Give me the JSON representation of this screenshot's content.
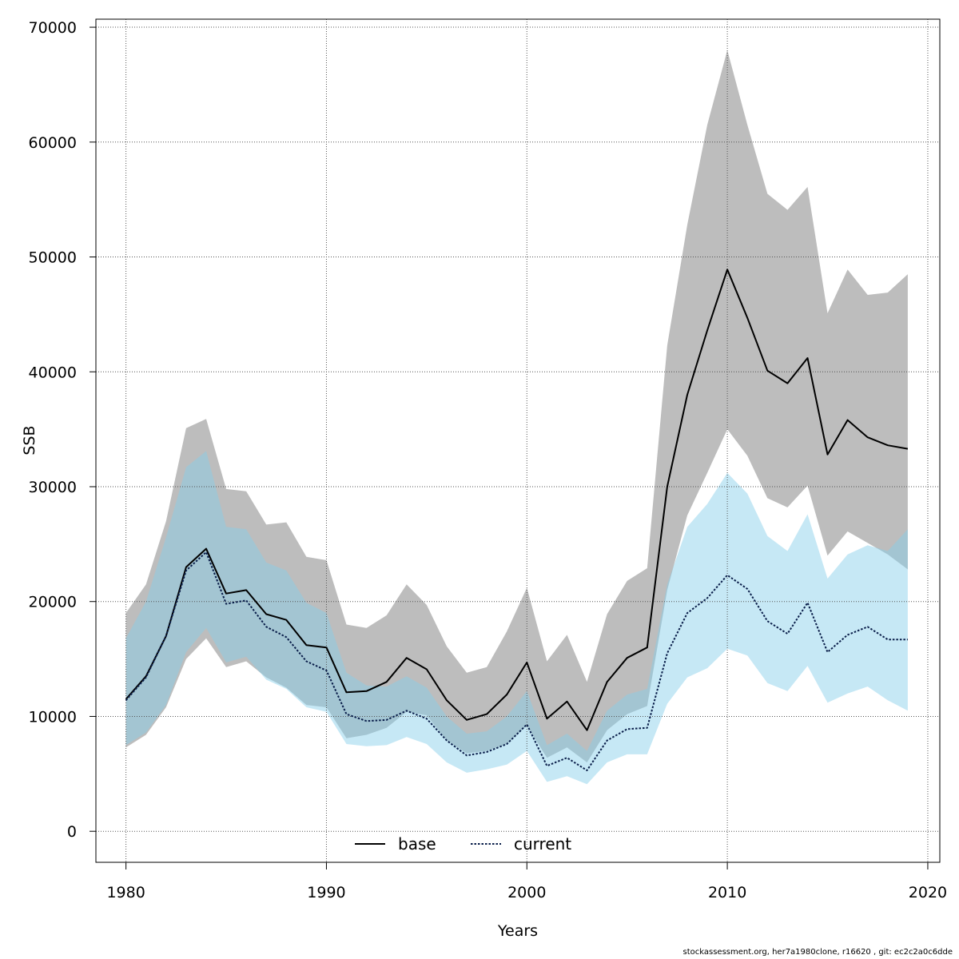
{
  "chart_data": {
    "type": "line",
    "xlabel": "Years",
    "ylabel": "SSB",
    "xlim": [
      1978.5,
      2020.6
    ],
    "ylim": [
      -2700,
      70700
    ],
    "xticks": [
      1980,
      1990,
      2000,
      2010,
      2020
    ],
    "yticks": [
      0,
      10000,
      20000,
      30000,
      40000,
      50000,
      60000,
      70000
    ],
    "grid": true,
    "legend_position": "bottom-center",
    "x": [
      1980,
      1981,
      1982,
      1983,
      1984,
      1985,
      1986,
      1987,
      1988,
      1989,
      1990,
      1991,
      1992,
      1993,
      1994,
      1995,
      1996,
      1997,
      1998,
      1999,
      2000,
      2001,
      2002,
      2003,
      2004,
      2005,
      2006,
      2007,
      2008,
      2009,
      2010,
      2011,
      2012,
      2013,
      2014,
      2015,
      2016,
      2017,
      2018,
      2019
    ],
    "series": [
      {
        "name": "base",
        "line_color": "#000000",
        "band_color": "#808080",
        "values": [
          11500,
          13500,
          17000,
          23000,
          24600,
          20700,
          21000,
          18900,
          18400,
          16200,
          16000,
          12100,
          12200,
          13000,
          15100,
          14100,
          11400,
          9700,
          10200,
          11900,
          14700,
          9800,
          11300,
          8800,
          13000,
          15100,
          16000,
          30000,
          38000,
          43600,
          48900,
          44700,
          40100,
          39000,
          41200,
          32800,
          35800,
          34300,
          33600,
          33300
        ],
        "lower": [
          7300,
          8400,
          10800,
          15000,
          16800,
          14300,
          14800,
          13400,
          12500,
          11000,
          10800,
          8100,
          8400,
          9000,
          10400,
          10100,
          7900,
          6800,
          7000,
          7600,
          9200,
          6400,
          7300,
          6000,
          8800,
          10200,
          10900,
          21000,
          27500,
          31200,
          35000,
          32700,
          29000,
          28200,
          30100,
          24000,
          26100,
          25100,
          24100,
          22800
        ],
        "upper": [
          19000,
          21500,
          27000,
          35100,
          35900,
          29800,
          29600,
          26700,
          26900,
          23900,
          23600,
          18000,
          17700,
          18800,
          21500,
          19700,
          16100,
          13800,
          14300,
          17400,
          21200,
          14800,
          17100,
          13000,
          18900,
          21800,
          22900,
          42300,
          52800,
          61500,
          68000,
          61500,
          55500,
          54100,
          56100,
          45100,
          48900,
          46700,
          46900,
          48500
        ]
      },
      {
        "name": "current",
        "line_color": "#0a1e4a",
        "band_color": "#87ceeb",
        "values": [
          11400,
          13400,
          17000,
          22700,
          24300,
          19800,
          20100,
          17800,
          16900,
          14800,
          14000,
          10200,
          9600,
          9700,
          10500,
          9800,
          7900,
          6600,
          6900,
          7600,
          9300,
          5700,
          6400,
          5300,
          7900,
          8900,
          9000,
          15500,
          19000,
          20300,
          22300,
          21100,
          18300,
          17200,
          19900,
          15600,
          17100,
          17800,
          16700,
          16700
        ],
        "lower": [
          7500,
          8600,
          11000,
          15600,
          17700,
          14700,
          15200,
          13200,
          12400,
          10800,
          10400,
          7600,
          7400,
          7500,
          8200,
          7600,
          6000,
          5100,
          5400,
          5800,
          7000,
          4300,
          4800,
          4100,
          6000,
          6700,
          6700,
          11100,
          13400,
          14200,
          15900,
          15300,
          12900,
          12200,
          14400,
          11200,
          12000,
          12600,
          11400,
          10500
        ],
        "upper": [
          16800,
          20000,
          25600,
          31700,
          33100,
          26500,
          26300,
          23400,
          22700,
          19900,
          19000,
          13800,
          12700,
          12600,
          13500,
          12500,
          10000,
          8500,
          8700,
          10000,
          12200,
          7500,
          8500,
          7000,
          10500,
          11900,
          12400,
          21500,
          26500,
          28500,
          31200,
          29400,
          25700,
          24400,
          27600,
          22000,
          24100,
          24900,
          24400,
          26300
        ]
      }
    ]
  },
  "footer": "stockassessment.org, her7a1980clone, r16620 , git: ec2c2a0c6dde"
}
